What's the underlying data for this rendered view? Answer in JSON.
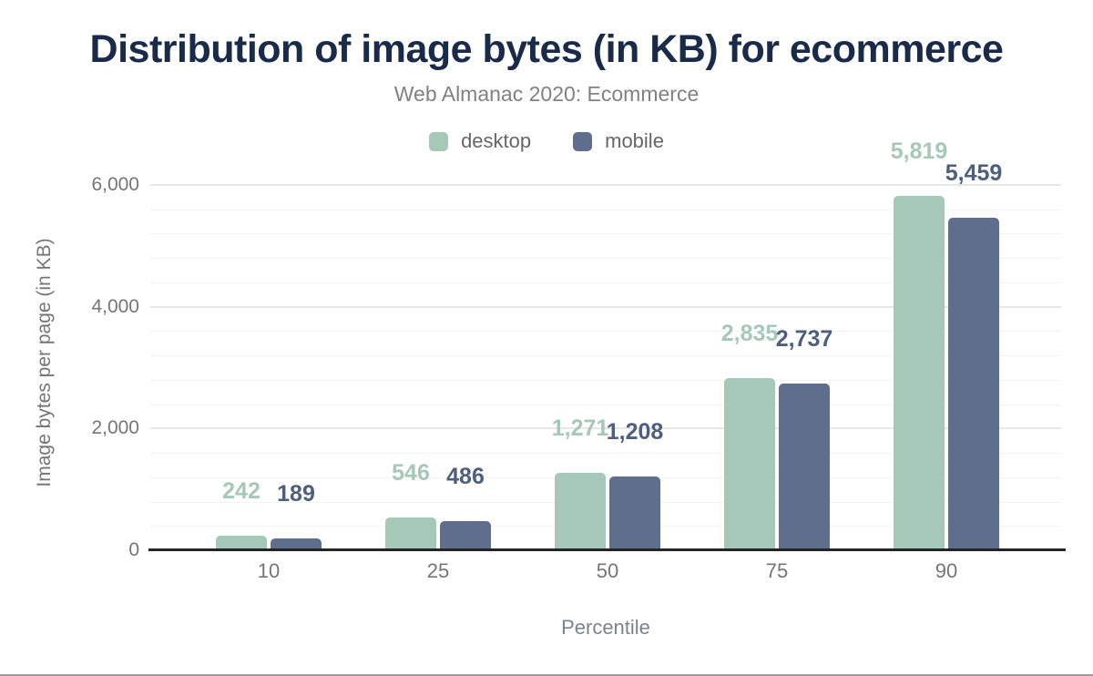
{
  "title": "Distribution of image bytes (in KB) for ecommerce",
  "subtitle": "Web Almanac 2020: Ecommerce",
  "legend": [
    {
      "label": "desktop",
      "color": "#a5c8b8"
    },
    {
      "label": "mobile",
      "color": "#5f6e8c"
    }
  ],
  "colors": {
    "title": "#1a2b49",
    "subtitle": "#818181",
    "axis_text": "#757575",
    "axis_line": "#252525",
    "gridline_major": "#e7e7e7",
    "gridline_minor": "#f3f3f3",
    "desktop_bar": "#a5c8b8",
    "mobile_bar": "#5f6e8c",
    "desktop_label": "#a5c8b8",
    "mobile_label": "#4e5f7d"
  },
  "chart_data": {
    "type": "bar",
    "categories": [
      "10",
      "25",
      "50",
      "75",
      "90"
    ],
    "series": [
      {
        "name": "desktop",
        "color": "#a5c8b8",
        "label_color": "#a5c8b8",
        "values": [
          242,
          546,
          1271,
          2835,
          5819
        ],
        "labels": [
          "242",
          "546",
          "1,271",
          "2,835",
          "5,819"
        ]
      },
      {
        "name": "mobile",
        "color": "#5f6e8c",
        "label_color": "#4e5f7d",
        "values": [
          189,
          486,
          1208,
          2737,
          5459
        ],
        "labels": [
          "189",
          "486",
          "1,208",
          "2,737",
          "5,459"
        ]
      }
    ],
    "title": "Distribution of image bytes (in KB) for ecommerce",
    "subtitle": "Web Almanac 2020: Ecommerce",
    "xlabel": "Percentile",
    "ylabel": "Image bytes per page (in KB)",
    "ylim": [
      0,
      6000
    ],
    "yticks": [
      0,
      2000,
      4000,
      6000
    ],
    "ytick_labels": [
      "0",
      "2,000",
      "4,000",
      "6,000"
    ],
    "minor_grid_step": 400,
    "grid": true,
    "legend_position": "top",
    "data_labels": true
  }
}
